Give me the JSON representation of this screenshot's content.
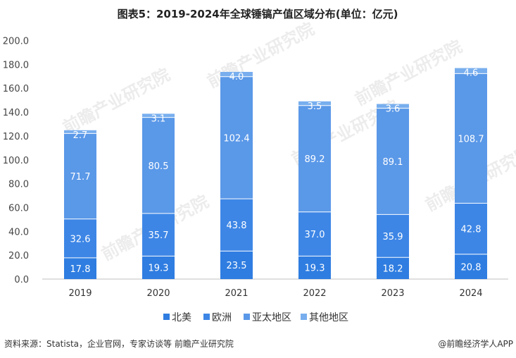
{
  "source": "资料来源：Statista，企业官网，专家访谈等 前瞻产业研究院",
  "brand": "@前瞻经济学人APP",
  "watermark": "前瞻产业研究院",
  "chart_data": {
    "type": "bar",
    "stacked": true,
    "title": "图表5：2019-2024年全球锤镐产值区域分布(单位：亿元)",
    "categories": [
      "2019",
      "2020",
      "2021",
      "2022",
      "2023",
      "2024"
    ],
    "series": [
      {
        "name": "北美",
        "color": "#2F7DE1",
        "values": [
          17.8,
          19.3,
          23.5,
          19.3,
          18.2,
          20.8
        ]
      },
      {
        "name": "欧洲",
        "color": "#3D86E6",
        "values": [
          32.6,
          35.7,
          43.8,
          37.0,
          35.9,
          42.8
        ]
      },
      {
        "name": "亚太地区",
        "color": "#5A98E8",
        "values": [
          71.7,
          80.5,
          102.4,
          89.2,
          89.1,
          108.7
        ]
      },
      {
        "name": "其他地区",
        "color": "#78AEEE",
        "values": [
          2.7,
          3.1,
          4.0,
          3.5,
          3.6,
          4.6
        ]
      }
    ],
    "yticks": [
      "0.0",
      "20.0",
      "40.0",
      "60.0",
      "80.0",
      "100.0",
      "120.0",
      "140.0",
      "160.0",
      "180.0",
      "200.0"
    ],
    "ylim": [
      0,
      200
    ],
    "grid": false,
    "legend": "bottom"
  }
}
